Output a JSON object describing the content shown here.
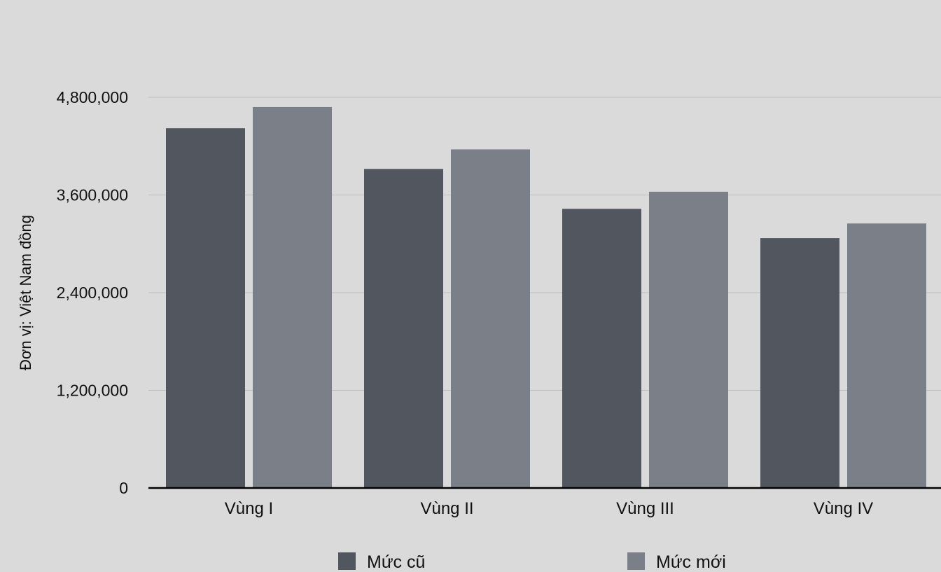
{
  "chart_data": {
    "type": "bar",
    "title": "",
    "xlabel": "",
    "ylabel": "Đơn vị: Việt Nam đồng",
    "categories": [
      "Vùng I",
      "Vùng II",
      "Vùng III",
      "Vùng IV"
    ],
    "series": [
      {
        "name": "Mức cũ",
        "color": "#52565e",
        "values": [
          4420000,
          3920000,
          3430000,
          3070000
        ]
      },
      {
        "name": "Mức mới",
        "color": "#7b8088",
        "values": [
          4680000,
          4160000,
          3640000,
          3250000
        ]
      }
    ],
    "ylim": [
      0,
      4800000
    ],
    "yticks": [
      0,
      1200000,
      2400000,
      3600000,
      4800000
    ],
    "ytick_labels": [
      "0",
      "1,200,000",
      "2,400,000",
      "3,600,000",
      "4,800,000"
    ],
    "grid": true,
    "legend_position": "bottom"
  }
}
